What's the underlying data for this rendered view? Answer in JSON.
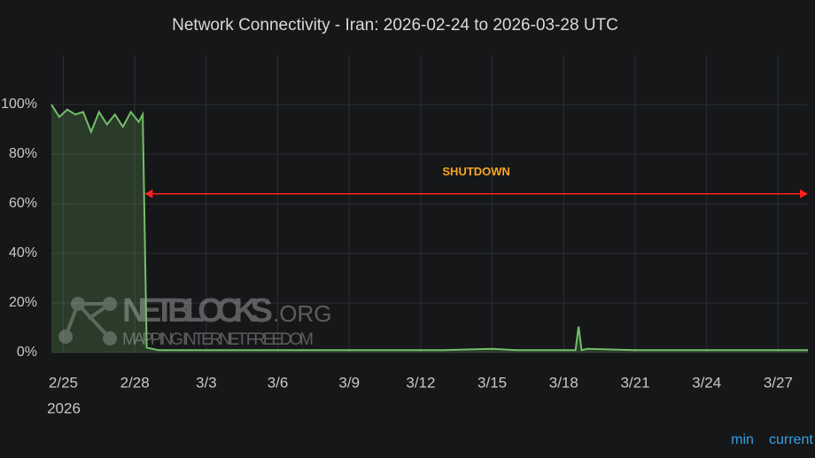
{
  "chart_data": {
    "type": "line",
    "title": "Network Connectivity - Iran: 2026-02-24 to 2026-03-28 UTC",
    "x": [
      "2026-02-24T12:00",
      "2026-02-24T20:00",
      "2026-02-25T04:00",
      "2026-02-25T12:00",
      "2026-02-25T20:00",
      "2026-02-26T04:00",
      "2026-02-26T12:00",
      "2026-02-26T20:00",
      "2026-02-27T04:00",
      "2026-02-27T12:00",
      "2026-02-27T20:00",
      "2026-02-28T04:00",
      "2026-02-28T08:00",
      "2026-02-28T12:00",
      "2026-03-01",
      "2026-03-03",
      "2026-03-05",
      "2026-03-07",
      "2026-03-09",
      "2026-03-11",
      "2026-03-13",
      "2026-03-15",
      "2026-03-16",
      "2026-03-18T12:00",
      "2026-03-18T15:00",
      "2026-03-18T18:00",
      "2026-03-19",
      "2026-03-21",
      "2026-03-23",
      "2026-03-25",
      "2026-03-27",
      "2026-03-28T06:00"
    ],
    "series": [
      {
        "name": "Iran",
        "color": "#73bf69",
        "values": [
          100,
          95,
          98,
          96,
          97,
          89,
          97,
          92,
          96,
          91,
          97,
          93,
          96,
          2,
          1,
          1,
          1,
          1,
          1,
          1,
          1,
          1.5,
          1,
          1,
          10.5,
          1,
          1.5,
          1,
          1,
          1,
          1,
          1
        ]
      }
    ],
    "xlim": [
      "2026-02-24T12:00",
      "2026-03-28T06:00"
    ],
    "xticks": [
      {
        "value": "2026-02-25",
        "label": "2/25"
      },
      {
        "value": "2026-02-28",
        "label": "2/28"
      },
      {
        "value": "2026-03-03",
        "label": "3/3"
      },
      {
        "value": "2026-03-06",
        "label": "3/6"
      },
      {
        "value": "2026-03-09",
        "label": "3/9"
      },
      {
        "value": "2026-03-12",
        "label": "3/12"
      },
      {
        "value": "2026-03-15",
        "label": "3/15"
      },
      {
        "value": "2026-03-18",
        "label": "3/18"
      },
      {
        "value": "2026-03-21",
        "label": "3/21"
      },
      {
        "value": "2026-03-24",
        "label": "3/24"
      },
      {
        "value": "2026-03-27",
        "label": "3/27"
      }
    ],
    "x_year_label": "2026",
    "ylim": [
      0,
      120
    ],
    "yticks": [
      {
        "value": 0,
        "label": "0%"
      },
      {
        "value": 20,
        "label": "20%"
      },
      {
        "value": 40,
        "label": "40%"
      },
      {
        "value": 60,
        "label": "60%"
      },
      {
        "value": 80,
        "label": "80%"
      },
      {
        "value": 100,
        "label": "100%"
      }
    ],
    "grid": true,
    "annotation": {
      "text": "SHUTDOWN",
      "start": "2026-02-28T10:00",
      "y": 64,
      "color": "#ff2020"
    },
    "watermark": {
      "brand": "NETBLOCKS",
      "suffix": ".ORG",
      "tagline": "MAPPING INTERNET FREEDOM"
    },
    "legend_labels": [
      "min",
      "current"
    ]
  }
}
